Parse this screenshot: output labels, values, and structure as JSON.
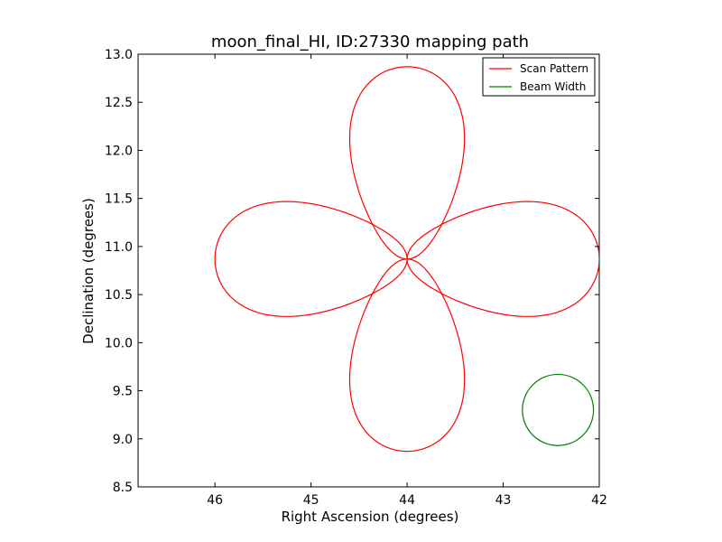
{
  "chart_data": {
    "type": "line",
    "title": "moon_final_HI, ID:27330 mapping path",
    "xlabel": "Right Ascension (degrees)",
    "ylabel": "Declination (degrees)",
    "xlim": [
      46.8,
      42.0
    ],
    "ylim": [
      8.5,
      13.0
    ],
    "x_inverted": true,
    "xticks": [
      46,
      45,
      44,
      43,
      42
    ],
    "xtick_labels": [
      "46",
      "45",
      "44",
      "43",
      "42"
    ],
    "yticks": [
      8.5,
      9.0,
      9.5,
      10.0,
      10.5,
      11.0,
      11.5,
      12.0,
      12.5,
      13.0
    ],
    "ytick_labels": [
      "8.5",
      "9.0",
      "9.5",
      "10.0",
      "10.5",
      "11.0",
      "11.5",
      "12.0",
      "12.5",
      "13.0"
    ],
    "grid": false,
    "legend_position": "top-right",
    "series": [
      {
        "name": "Scan Pattern",
        "color": "#ff0000",
        "center": [
          44.0,
          10.87
        ],
        "lobes": [
          {
            "direction": "up",
            "extent": 2.0,
            "half_width": 0.55
          },
          {
            "direction": "right",
            "extent": 2.0,
            "half_width": 0.55
          },
          {
            "direction": "down",
            "extent": 2.0,
            "half_width": 0.55
          },
          {
            "direction": "left",
            "extent": 2.0,
            "half_width": 0.55
          }
        ]
      },
      {
        "name": "Beam Width",
        "color": "#008000",
        "shape": "circle",
        "center": [
          42.43,
          9.3
        ],
        "radius": 0.37
      }
    ]
  }
}
